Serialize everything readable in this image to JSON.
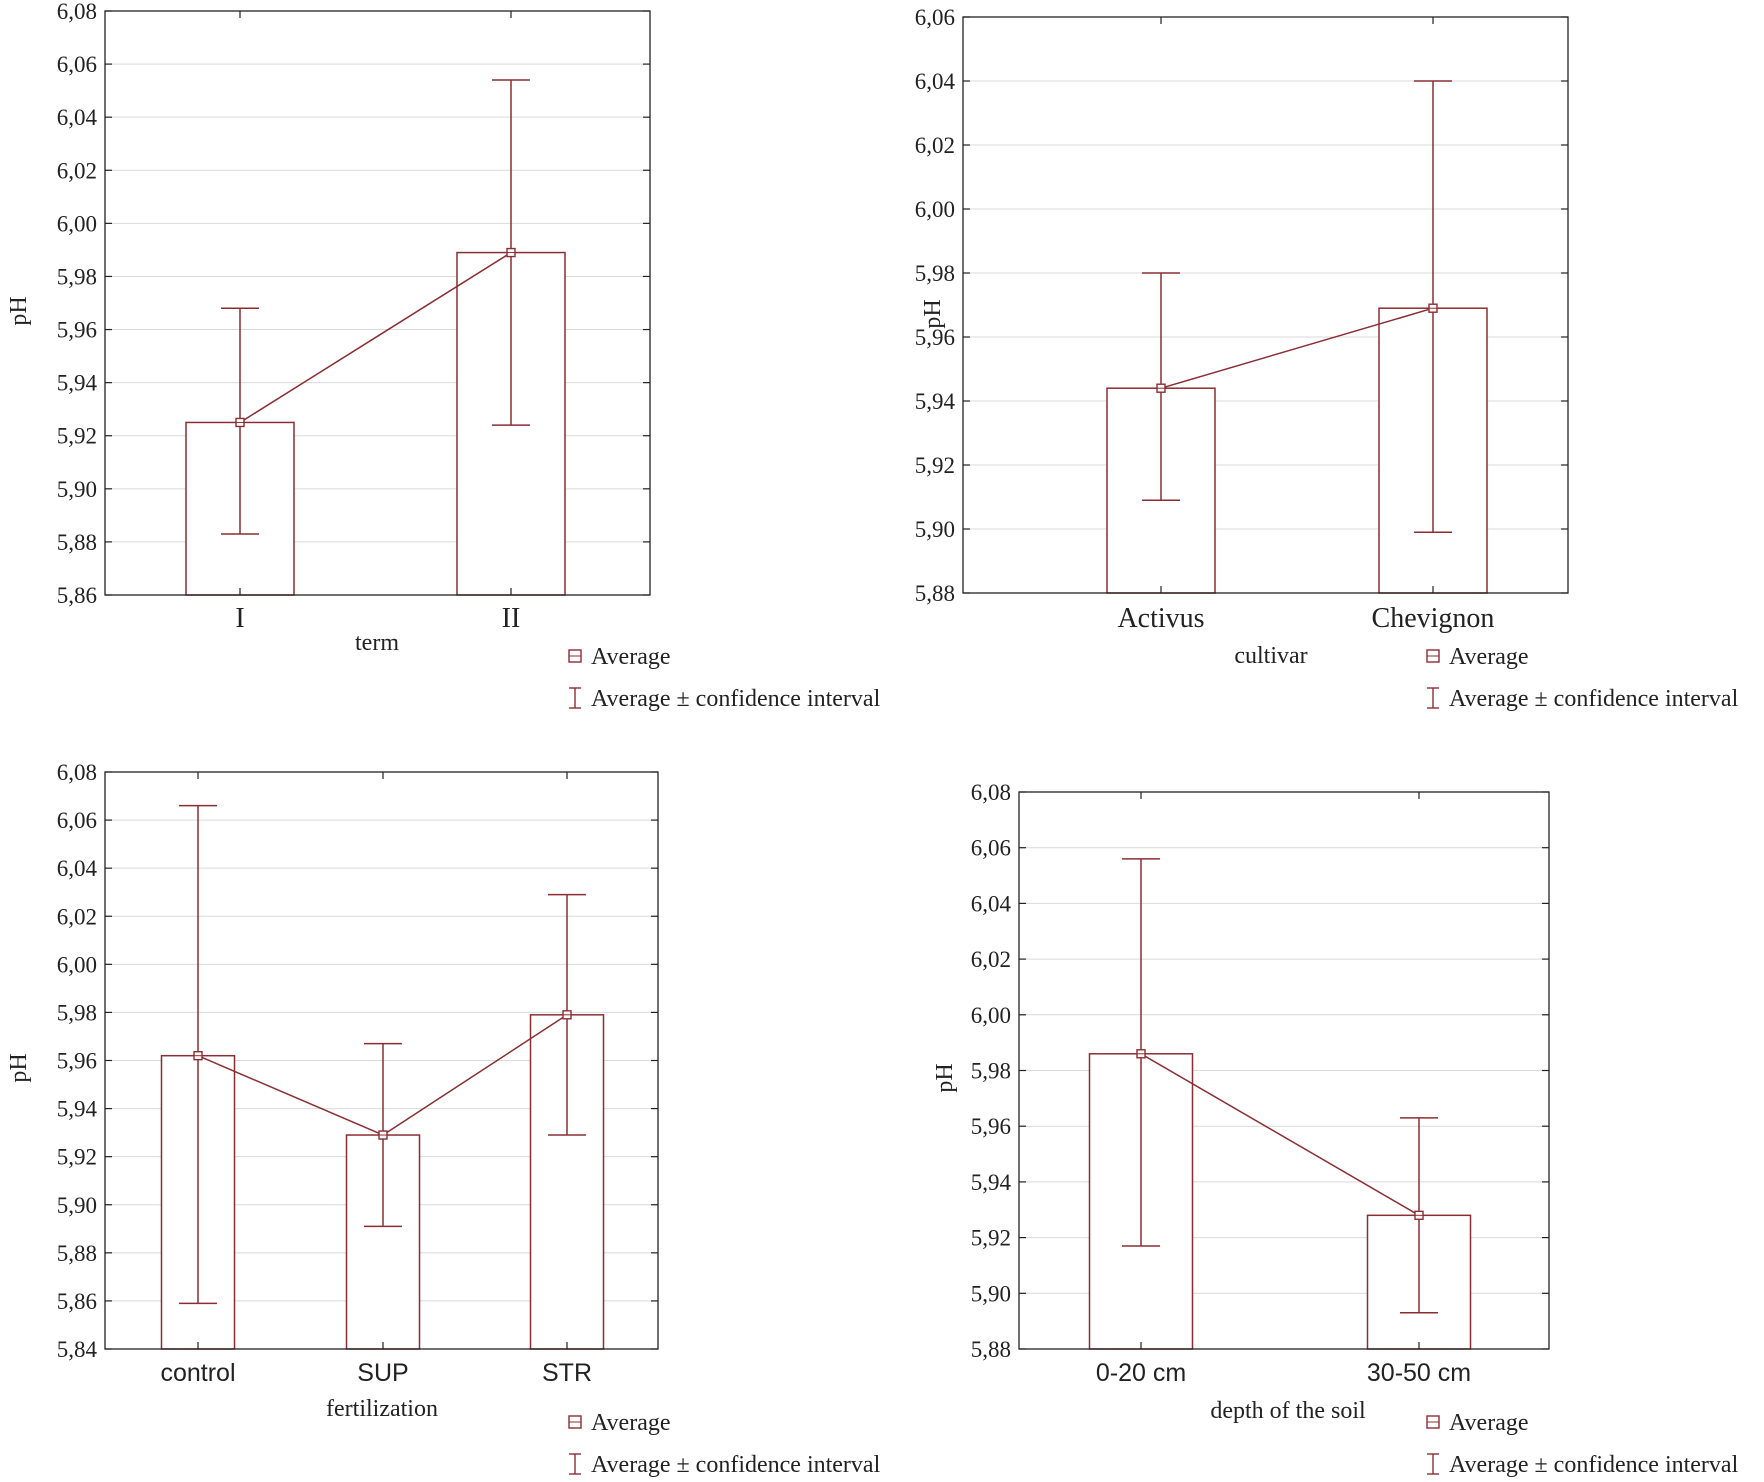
{
  "legend": {
    "average": "Average",
    "average_ci": "Average ± confidence interval"
  },
  "colors": {
    "series": "#8b2e33"
  },
  "chart_data": [
    {
      "type": "bar",
      "xlabel": "term",
      "ylabel": "pH",
      "ylim": [
        5.86,
        6.08
      ],
      "ystep": 0.02,
      "categories": [
        "I",
        "II"
      ],
      "values": [
        5.925,
        5.989
      ],
      "ci_low": [
        5.883,
        5.924
      ],
      "ci_high": [
        5.968,
        6.054
      ],
      "grid": true,
      "legend_position": "bottom-right"
    },
    {
      "type": "bar",
      "xlabel": "cultivar",
      "ylabel": "pH",
      "ylim": [
        5.88,
        6.06
      ],
      "ystep": 0.02,
      "categories": [
        "Activus",
        "Chevignon"
      ],
      "values": [
        5.944,
        5.969
      ],
      "ci_low": [
        5.909,
        5.899
      ],
      "ci_high": [
        5.98,
        6.04
      ],
      "grid": true,
      "legend_position": "bottom-right"
    },
    {
      "type": "bar",
      "xlabel": "fertilization",
      "ylabel": "pH",
      "ylim": [
        5.84,
        6.08
      ],
      "ystep": 0.02,
      "categories": [
        "control",
        "SUP",
        "STR"
      ],
      "values": [
        5.962,
        5.929,
        5.979
      ],
      "ci_low": [
        5.859,
        5.891,
        5.929
      ],
      "ci_high": [
        6.066,
        5.967,
        6.029
      ],
      "grid": true,
      "legend_position": "bottom-right"
    },
    {
      "type": "bar",
      "xlabel": "depth of the soil",
      "ylabel": "pH",
      "ylim": [
        5.88,
        6.08
      ],
      "ystep": 0.02,
      "categories": [
        "0-20 cm",
        "30-50 cm"
      ],
      "values": [
        5.986,
        5.928
      ],
      "ci_low": [
        5.917,
        5.893
      ],
      "ci_high": [
        6.056,
        5.963
      ],
      "grid": true,
      "legend_position": "bottom-right"
    }
  ]
}
